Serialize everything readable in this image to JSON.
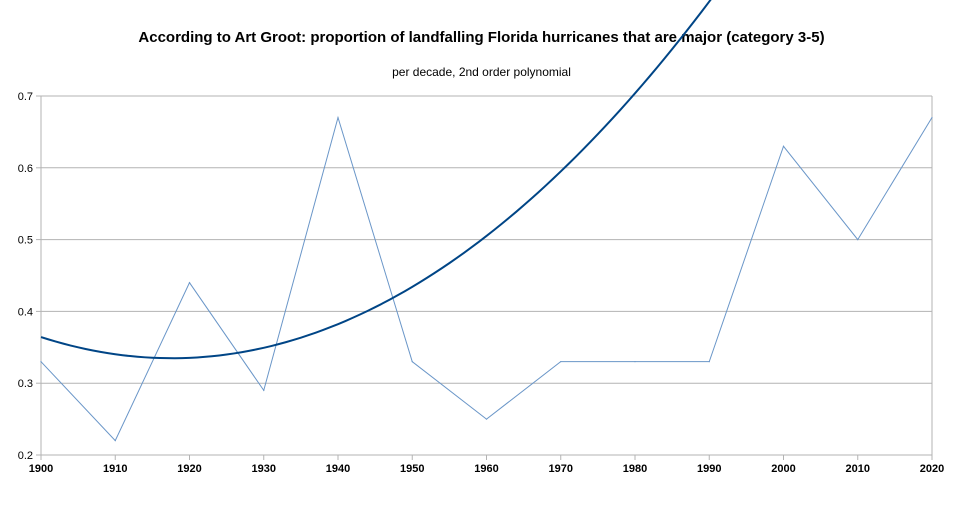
{
  "chart_data": {
    "type": "line",
    "title": "According to Art Groot: proportion of landfalling Florida hurricanes that are major (category 3-5)",
    "subtitle": "per decade, 2nd order polynomial",
    "x": [
      1900,
      1910,
      1920,
      1930,
      1940,
      1950,
      1960,
      1970,
      1980,
      1990,
      2000,
      2010,
      2020
    ],
    "series": [
      {
        "values": [
          0.33,
          0.22,
          0.44,
          0.29,
          0.67,
          0.33,
          0.25,
          0.33,
          0.33,
          0.33,
          0.63,
          0.5,
          0.67
        ],
        "color": "#6a96c8"
      }
    ],
    "trendline": {
      "kind": "polynomial order 2",
      "color": "#004586",
      "coefficients": [
        0.3643,
        -0.003345,
        9.485e-05
      ]
    },
    "xlim": [
      1900,
      2020
    ],
    "ylim": [
      0.2,
      0.7
    ],
    "xticks": [
      "1900",
      "1910",
      "1920",
      "1930",
      "1940",
      "1950",
      "1960",
      "1970",
      "1980",
      "1990",
      "2000",
      "2010",
      "2020"
    ],
    "yticks": [
      "0.2",
      "0.3",
      "0.4",
      "0.5",
      "0.6",
      "0.7"
    ],
    "grid": true,
    "legend": "none",
    "xlabel": "",
    "ylabel": ""
  }
}
